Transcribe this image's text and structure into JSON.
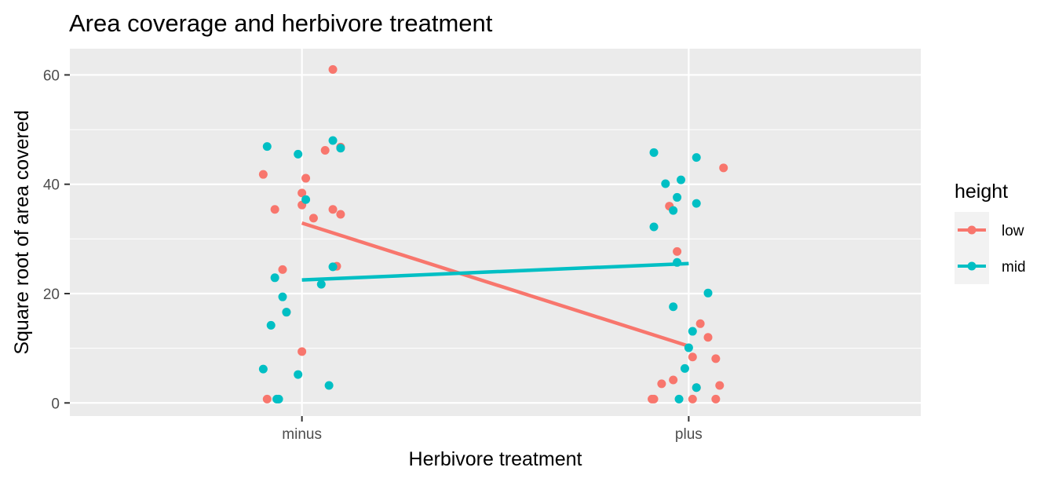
{
  "chart_data": {
    "type": "scatter",
    "title": "Area coverage and herbivore treatment",
    "xlabel": "Herbivore treatment",
    "ylabel": "Square root of area covered",
    "categories": [
      "minus",
      "plus"
    ],
    "ylim": [
      -2.4,
      64.8
    ],
    "yticks": [
      0,
      20,
      40,
      60
    ],
    "grid": true,
    "legend": {
      "title": "height",
      "position": "right",
      "entries": [
        "low",
        "mid"
      ]
    },
    "colors": {
      "low": "#F8766D",
      "mid": "#00BFC4",
      "panel": "#EBEBEB",
      "grid": "#FFFFFF"
    },
    "series": [
      {
        "name": "low",
        "color": "#F8766D",
        "points": [
          {
            "x": "minus",
            "jitter": 0.08,
            "y": 61.0
          },
          {
            "x": "minus",
            "jitter": 0.06,
            "y": 46.2
          },
          {
            "x": "minus",
            "jitter": 0.1,
            "y": 46.8
          },
          {
            "x": "minus",
            "jitter": -0.1,
            "y": 41.8
          },
          {
            "x": "minus",
            "jitter": 0.01,
            "y": 41.1
          },
          {
            "x": "minus",
            "jitter": 0.0,
            "y": 38.4
          },
          {
            "x": "minus",
            "jitter": 0.0,
            "y": 36.2
          },
          {
            "x": "minus",
            "jitter": -0.07,
            "y": 35.4
          },
          {
            "x": "minus",
            "jitter": 0.08,
            "y": 35.4
          },
          {
            "x": "minus",
            "jitter": 0.1,
            "y": 34.5
          },
          {
            "x": "minus",
            "jitter": 0.03,
            "y": 33.8
          },
          {
            "x": "minus",
            "jitter": 0.09,
            "y": 25.0
          },
          {
            "x": "minus",
            "jitter": -0.05,
            "y": 24.4
          },
          {
            "x": "minus",
            "jitter": -0.04,
            "y": 16.6
          },
          {
            "x": "minus",
            "jitter": 0.0,
            "y": 9.4
          },
          {
            "x": "minus",
            "jitter": -0.09,
            "y": 0.7
          },
          {
            "x": "plus",
            "jitter": 0.09,
            "y": 43.0
          },
          {
            "x": "plus",
            "jitter": -0.05,
            "y": 36.0
          },
          {
            "x": "plus",
            "jitter": -0.03,
            "y": 27.7
          },
          {
            "x": "plus",
            "jitter": 0.03,
            "y": 14.5
          },
          {
            "x": "plus",
            "jitter": 0.05,
            "y": 12.0
          },
          {
            "x": "plus",
            "jitter": 0.01,
            "y": 8.4
          },
          {
            "x": "plus",
            "jitter": 0.07,
            "y": 8.1
          },
          {
            "x": "plus",
            "jitter": -0.04,
            "y": 4.2
          },
          {
            "x": "plus",
            "jitter": -0.07,
            "y": 3.5
          },
          {
            "x": "plus",
            "jitter": 0.08,
            "y": 3.2
          },
          {
            "x": "plus",
            "jitter": 0.02,
            "y": 2.8
          },
          {
            "x": "plus",
            "jitter": -0.09,
            "y": 0.7
          },
          {
            "x": "plus",
            "jitter": -0.095,
            "y": 0.7
          },
          {
            "x": "plus",
            "jitter": 0.01,
            "y": 0.7
          },
          {
            "x": "plus",
            "jitter": 0.07,
            "y": 0.7
          }
        ],
        "line": [
          {
            "x": "minus",
            "y": 32.9
          },
          {
            "x": "plus",
            "y": 10.4
          }
        ]
      },
      {
        "name": "mid",
        "color": "#00BFC4",
        "points": [
          {
            "x": "minus",
            "jitter": 0.08,
            "y": 48.0
          },
          {
            "x": "minus",
            "jitter": -0.09,
            "y": 46.9
          },
          {
            "x": "minus",
            "jitter": 0.1,
            "y": 46.6
          },
          {
            "x": "minus",
            "jitter": -0.01,
            "y": 45.5
          },
          {
            "x": "minus",
            "jitter": 0.01,
            "y": 37.2
          },
          {
            "x": "minus",
            "jitter": 0.08,
            "y": 24.9
          },
          {
            "x": "minus",
            "jitter": -0.07,
            "y": 22.9
          },
          {
            "x": "minus",
            "jitter": 0.05,
            "y": 21.7
          },
          {
            "x": "minus",
            "jitter": -0.05,
            "y": 19.4
          },
          {
            "x": "minus",
            "jitter": -0.04,
            "y": 16.6
          },
          {
            "x": "minus",
            "jitter": -0.08,
            "y": 14.2
          },
          {
            "x": "minus",
            "jitter": -0.1,
            "y": 6.2
          },
          {
            "x": "minus",
            "jitter": -0.01,
            "y": 5.2
          },
          {
            "x": "minus",
            "jitter": 0.07,
            "y": 3.2
          },
          {
            "x": "minus",
            "jitter": -0.065,
            "y": 0.7
          },
          {
            "x": "minus",
            "jitter": -0.06,
            "y": 0.7
          },
          {
            "x": "plus",
            "jitter": -0.09,
            "y": 45.8
          },
          {
            "x": "plus",
            "jitter": 0.02,
            "y": 44.9
          },
          {
            "x": "plus",
            "jitter": -0.02,
            "y": 40.8
          },
          {
            "x": "plus",
            "jitter": -0.06,
            "y": 40.1
          },
          {
            "x": "plus",
            "jitter": -0.03,
            "y": 37.6
          },
          {
            "x": "plus",
            "jitter": 0.02,
            "y": 36.5
          },
          {
            "x": "plus",
            "jitter": -0.04,
            "y": 35.2
          },
          {
            "x": "plus",
            "jitter": -0.09,
            "y": 32.2
          },
          {
            "x": "plus",
            "jitter": -0.03,
            "y": 25.7
          },
          {
            "x": "plus",
            "jitter": 0.05,
            "y": 20.1
          },
          {
            "x": "plus",
            "jitter": -0.04,
            "y": 17.6
          },
          {
            "x": "plus",
            "jitter": 0.01,
            "y": 13.1
          },
          {
            "x": "plus",
            "jitter": 0.0,
            "y": 10.1
          },
          {
            "x": "plus",
            "jitter": -0.01,
            "y": 6.3
          },
          {
            "x": "plus",
            "jitter": 0.02,
            "y": 2.8
          },
          {
            "x": "plus",
            "jitter": -0.025,
            "y": 0.7
          }
        ],
        "line": [
          {
            "x": "minus",
            "y": 22.5
          },
          {
            "x": "plus",
            "y": 25.5
          }
        ]
      }
    ]
  }
}
